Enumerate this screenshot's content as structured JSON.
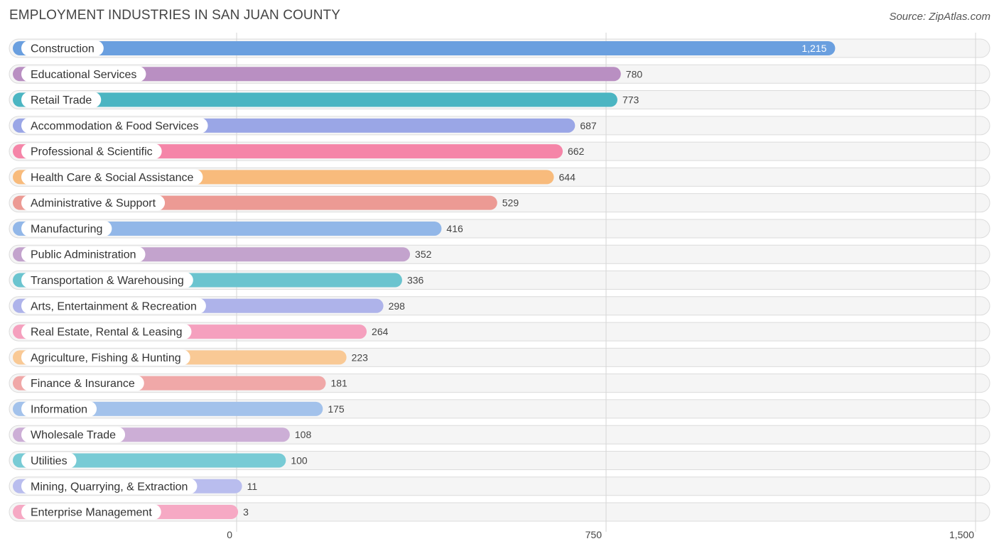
{
  "header": {
    "title": "EMPLOYMENT INDUSTRIES IN SAN JUAN COUNTY",
    "source": "Source: ZipAtlas.com"
  },
  "chart_data": {
    "type": "bar",
    "orientation": "horizontal",
    "title": "EMPLOYMENT INDUSTRIES IN SAN JUAN COUNTY",
    "xlabel": "",
    "ylabel": "",
    "xlim": [
      0,
      1500
    ],
    "ticks": [
      0,
      750,
      1500
    ],
    "tick_labels": [
      "0",
      "750",
      "1,500"
    ],
    "grid": true,
    "categories": [
      "Construction",
      "Educational Services",
      "Retail Trade",
      "Accommodation & Food Services",
      "Professional & Scientific",
      "Health Care & Social Assistance",
      "Administrative & Support",
      "Manufacturing",
      "Public Administration",
      "Transportation & Warehousing",
      "Arts, Entertainment & Recreation",
      "Real Estate, Rental & Leasing",
      "Agriculture, Fishing & Hunting",
      "Finance & Insurance",
      "Information",
      "Wholesale Trade",
      "Utilities",
      "Mining, Quarrying, & Extraction",
      "Enterprise Management"
    ],
    "values": [
      1215,
      780,
      773,
      687,
      662,
      644,
      529,
      416,
      352,
      336,
      298,
      264,
      223,
      181,
      175,
      108,
      100,
      11,
      3
    ],
    "value_labels": [
      "1,215",
      "780",
      "773",
      "687",
      "662",
      "644",
      "529",
      "416",
      "352",
      "336",
      "298",
      "264",
      "223",
      "181",
      "175",
      "108",
      "100",
      "11",
      "3"
    ],
    "colors": [
      "#6a9fdf",
      "#b98fc2",
      "#4bb5c2",
      "#9aa6e6",
      "#f585a8",
      "#f8bb7c",
      "#ec9a94",
      "#92b7e8",
      "#c3a3cd",
      "#6bc4cf",
      "#aeb3ea",
      "#f5a0be",
      "#f9c995",
      "#f0a8a8",
      "#a3c2eb",
      "#ccaed6",
      "#78cbd5",
      "#b9bdee",
      "#f6a9c4"
    ]
  }
}
